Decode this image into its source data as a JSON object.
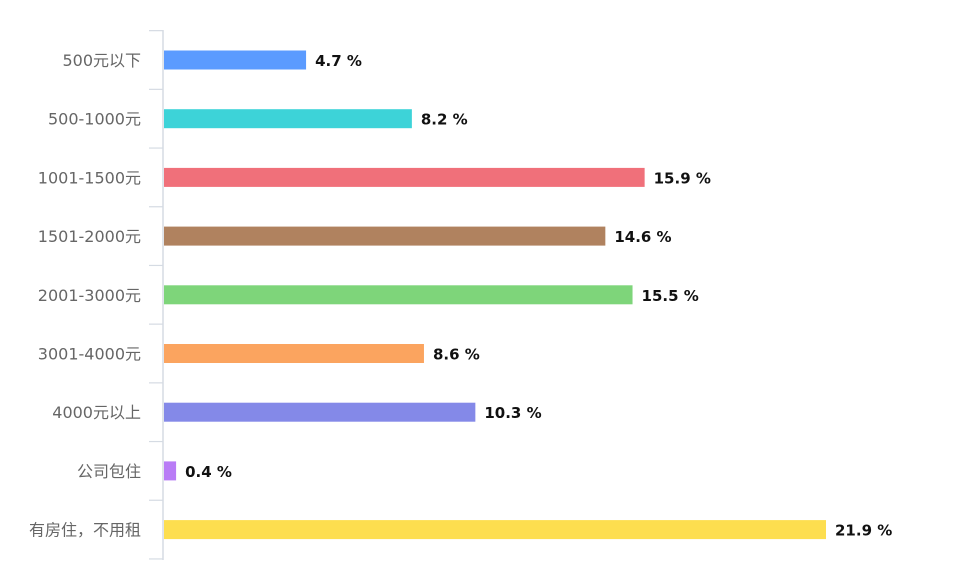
{
  "chart_data": {
    "type": "bar",
    "orientation": "horizontal",
    "categories": [
      "500元以下",
      "500-1000元",
      "1001-1500元",
      "1501-2000元",
      "2001-3000元",
      "3001-4000元",
      "4000元以上",
      "公司包住",
      "有房住，不用租"
    ],
    "values": [
      4.7,
      8.2,
      15.9,
      14.6,
      15.5,
      8.6,
      10.3,
      0.4,
      21.9
    ],
    "value_labels": [
      "4.7 %",
      "8.2 %",
      "15.9 %",
      "14.6 %",
      "15.5 %",
      "8.6 %",
      "10.3 %",
      "0.4 %",
      "21.9 %"
    ],
    "colors": [
      "#5b9bff",
      "#3dd3d8",
      "#f0707a",
      "#b0825f",
      "#7ed57a",
      "#fba45f",
      "#8489e8",
      "#b97cf6",
      "#fdde4f"
    ],
    "xlim": [
      0,
      22
    ],
    "grid": false,
    "legend": "none",
    "title": "",
    "xlabel": "",
    "ylabel": ""
  }
}
